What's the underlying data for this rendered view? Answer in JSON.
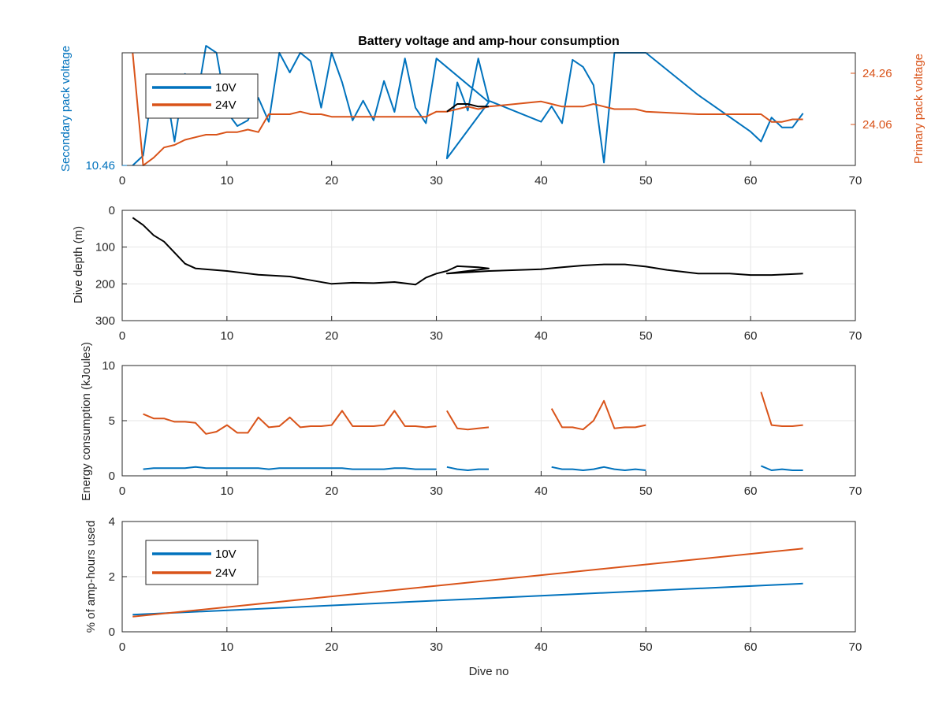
{
  "colors": {
    "blue": "#0072BD",
    "orange": "#D95319",
    "black": "#000000",
    "grid": "#e6e6e6",
    "axis": "#262626"
  },
  "chart_data": [
    {
      "type": "line",
      "title": "Battery voltage and amp-hour consumption",
      "xlabel": "",
      "ylabel_left": "Secondary pack voltage",
      "ylabel_right": "Primary pack voltage",
      "xlim": [
        0,
        70
      ],
      "xticks": [
        "0",
        "10",
        "20",
        "30",
        "40",
        "50",
        "60",
        "70"
      ],
      "ylim_left": [
        10.46,
        10.468
      ],
      "yticks_left": [
        "10.46"
      ],
      "ylim_right": [
        23.9,
        24.34
      ],
      "yticks_right": [
        "24.06",
        "24.26"
      ],
      "grid": false,
      "legend": {
        "position": "top-left",
        "entries": [
          "10V",
          "24V"
        ]
      },
      "series": [
        {
          "name": "10V",
          "axis": "left",
          "x": [
            1,
            2,
            3,
            4,
            5,
            6,
            7,
            8,
            9,
            10,
            11,
            12,
            13,
            14,
            15,
            16,
            17,
            18,
            19,
            20,
            21,
            22,
            23,
            24,
            25,
            26,
            27,
            28,
            29,
            30,
            35,
            31,
            32,
            33,
            34,
            35,
            40,
            41,
            42,
            43,
            44,
            45,
            46,
            47,
            48,
            49,
            50,
            55,
            60,
            61,
            62,
            63,
            64,
            65
          ],
          "y": [
            10.46,
            10.4607,
            10.4662,
            10.4662,
            10.4617,
            10.4665,
            10.4641,
            10.4685,
            10.468,
            10.4638,
            10.4628,
            10.4632,
            10.4648,
            10.4631,
            10.468,
            10.4666,
            10.468,
            10.4674,
            10.4641,
            10.468,
            10.4659,
            10.4632,
            10.4646,
            10.4632,
            10.466,
            10.4638,
            10.4676,
            10.4641,
            10.463,
            10.4676,
            10.4645,
            10.4605,
            10.4659,
            10.4639,
            10.4676,
            10.4646,
            10.4631,
            10.4642,
            10.463,
            10.4675,
            10.467,
            10.4657,
            10.4602,
            10.468,
            10.468,
            10.468,
            10.468,
            10.465,
            10.4624,
            10.4617,
            10.4634,
            10.4627,
            10.4627,
            10.4637
          ]
        },
        {
          "name": "24V",
          "axis": "right",
          "x": [
            1,
            2,
            3,
            4,
            5,
            6,
            7,
            8,
            9,
            10,
            11,
            12,
            13,
            14,
            15,
            16,
            17,
            18,
            19,
            20,
            21,
            22,
            23,
            24,
            25,
            26,
            27,
            28,
            29,
            30,
            31,
            32,
            33,
            34,
            35,
            40,
            41,
            42,
            43,
            44,
            45,
            46,
            47,
            48,
            49,
            50,
            55,
            60,
            61,
            62,
            63,
            64,
            65
          ],
          "y": [
            24.34,
            23.9,
            23.93,
            23.97,
            23.98,
            24.0,
            24.01,
            24.02,
            24.02,
            24.03,
            24.03,
            24.04,
            24.03,
            24.1,
            24.1,
            24.1,
            24.11,
            24.1,
            24.1,
            24.09,
            24.09,
            24.09,
            24.09,
            24.09,
            24.09,
            24.09,
            24.09,
            24.09,
            24.09,
            24.11,
            24.11,
            24.12,
            24.13,
            24.12,
            24.13,
            24.15,
            24.14,
            24.13,
            24.13,
            24.13,
            24.14,
            24.13,
            24.12,
            24.12,
            24.12,
            24.11,
            24.1,
            24.1,
            24.1,
            24.07,
            24.07,
            24.08,
            24.08
          ]
        },
        {
          "name": "",
          "axis": "right",
          "x": [
            31,
            32,
            33,
            34,
            35
          ],
          "y": [
            24.11,
            24.14,
            24.14,
            24.13,
            24.13
          ]
        }
      ]
    },
    {
      "type": "line",
      "xlabel": "",
      "ylabel": "Dive depth (m)",
      "xlim": [
        0,
        70
      ],
      "xticks": [
        "0",
        "10",
        "20",
        "30",
        "40",
        "50",
        "60",
        "70"
      ],
      "ylim": [
        0,
        300
      ],
      "reversed": true,
      "yticks": [
        "0",
        "100",
        "200",
        "300"
      ],
      "grid": true,
      "series": [
        {
          "name": "",
          "x": [
            1,
            2,
            3,
            4,
            5,
            6,
            7,
            10,
            13,
            16,
            18,
            20,
            22,
            24,
            26,
            28,
            29,
            30,
            31,
            32,
            34,
            35,
            31,
            35,
            40,
            42,
            44,
            46,
            48,
            50,
            52,
            55,
            58,
            60,
            62,
            65
          ],
          "y": [
            20,
            40,
            68,
            85,
            115,
            145,
            158,
            165,
            175,
            180,
            190,
            200,
            197,
            198,
            195,
            202,
            183,
            172,
            165,
            152,
            155,
            158,
            172,
            165,
            160,
            155,
            150,
            147,
            147,
            153,
            162,
            172,
            172,
            176,
            176,
            172
          ]
        }
      ]
    },
    {
      "type": "line",
      "xlabel": "",
      "ylabel": "Energy consumption (kJoules)",
      "xlim": [
        0,
        70
      ],
      "xticks": [
        "0",
        "10",
        "20",
        "30",
        "40",
        "50",
        "60",
        "70"
      ],
      "ylim": [
        0,
        10
      ],
      "yticks": [
        "0",
        "5",
        "10"
      ],
      "grid": true,
      "series": [
        {
          "name": "24V",
          "segments": [
            {
              "x": [
                2,
                3,
                4,
                5,
                6,
                7,
                8,
                9,
                10,
                11,
                12,
                13,
                14,
                15,
                16,
                17,
                18,
                19,
                20,
                21,
                22,
                23,
                24,
                25,
                26,
                27,
                28,
                29,
                30
              ],
              "y": [
                5.6,
                5.2,
                5.2,
                4.9,
                4.9,
                4.8,
                3.8,
                4.0,
                4.6,
                3.9,
                3.9,
                5.3,
                4.4,
                4.5,
                5.3,
                4.4,
                4.5,
                4.5,
                4.6,
                5.9,
                4.5,
                4.5,
                4.5,
                4.6,
                5.9,
                4.5,
                4.5,
                4.4,
                4.5
              ]
            },
            {
              "x": [
                31,
                32,
                33,
                34,
                35
              ],
              "y": [
                5.9,
                4.3,
                4.2,
                4.3,
                4.4
              ]
            },
            {
              "x": [
                41,
                42,
                43,
                44,
                45,
                46,
                47,
                48,
                49,
                50
              ],
              "y": [
                6.1,
                4.4,
                4.4,
                4.2,
                5.0,
                6.8,
                4.3,
                4.4,
                4.4,
                4.6
              ]
            },
            {
              "x": [
                61,
                62,
                63,
                64,
                65
              ],
              "y": [
                7.6,
                4.6,
                4.5,
                4.5,
                4.6
              ]
            }
          ]
        },
        {
          "name": "10V",
          "segments": [
            {
              "x": [
                2,
                3,
                4,
                5,
                6,
                7,
                8,
                9,
                10,
                11,
                12,
                13,
                14,
                15,
                16,
                17,
                18,
                19,
                20,
                21,
                22,
                23,
                24,
                25,
                26,
                27,
                28,
                29,
                30
              ],
              "y": [
                0.6,
                0.7,
                0.7,
                0.7,
                0.7,
                0.8,
                0.7,
                0.7,
                0.7,
                0.7,
                0.7,
                0.7,
                0.6,
                0.7,
                0.7,
                0.7,
                0.7,
                0.7,
                0.7,
                0.7,
                0.6,
                0.6,
                0.6,
                0.6,
                0.7,
                0.7,
                0.6,
                0.6,
                0.6
              ]
            },
            {
              "x": [
                31,
                32,
                33,
                34,
                35
              ],
              "y": [
                0.8,
                0.6,
                0.5,
                0.6,
                0.6
              ]
            },
            {
              "x": [
                41,
                42,
                43,
                44,
                45,
                46,
                47,
                48,
                49,
                50
              ],
              "y": [
                0.8,
                0.6,
                0.6,
                0.5,
                0.6,
                0.8,
                0.6,
                0.5,
                0.6,
                0.5
              ]
            },
            {
              "x": [
                61,
                62,
                63,
                64,
                65
              ],
              "y": [
                0.9,
                0.5,
                0.6,
                0.5,
                0.5
              ]
            }
          ]
        }
      ]
    },
    {
      "type": "line",
      "xlabel": "Dive no",
      "ylabel": "% of amp-hours used",
      "xlim": [
        0,
        70
      ],
      "xticks": [
        "0",
        "10",
        "20",
        "30",
        "40",
        "50",
        "60",
        "70"
      ],
      "ylim": [
        0,
        4
      ],
      "yticks": [
        "0",
        "2",
        "4"
      ],
      "grid": true,
      "legend": {
        "position": "top-left",
        "entries": [
          "10V",
          "24V"
        ]
      },
      "series": [
        {
          "name": "10V",
          "x": [
            1,
            65
          ],
          "y": [
            0.62,
            1.75
          ]
        },
        {
          "name": "24V",
          "x": [
            1,
            65
          ],
          "y": [
            0.55,
            3.02
          ]
        }
      ]
    }
  ]
}
